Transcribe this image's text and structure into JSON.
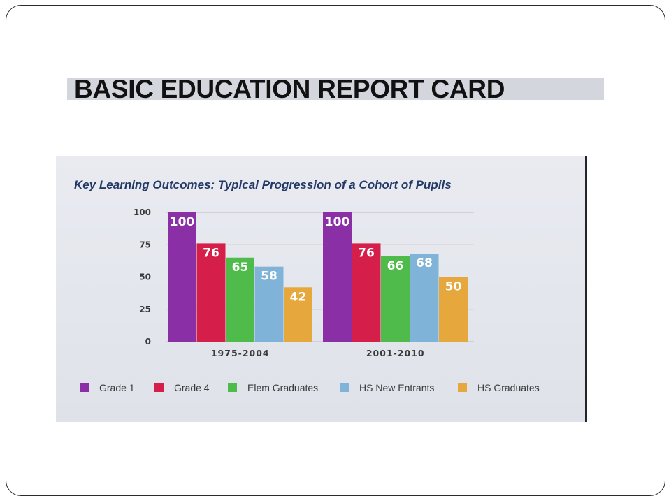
{
  "slide": {
    "title": "BASIC EDUCATION REPORT CARD"
  },
  "chart_data": {
    "type": "bar",
    "title": "Key Learning Outcomes: Typical Progression of a Cohort of Pupils",
    "categories": [
      "1975-2004",
      "2001-2010"
    ],
    "series": [
      {
        "name": "Grade 1",
        "values": [
          100,
          100
        ],
        "color": "#8a2fa6"
      },
      {
        "name": "Grade 4",
        "values": [
          76,
          76
        ],
        "color": "#d51f4a"
      },
      {
        "name": "Elem Graduates",
        "values": [
          65,
          66
        ],
        "color": "#4fbb4a"
      },
      {
        "name": "HS New Entrants",
        "values": [
          58,
          68
        ],
        "color": "#7fb3d8"
      },
      {
        "name": "HS Graduates",
        "values": [
          42,
          50
        ],
        "color": "#e6a83c"
      }
    ],
    "yticks": [
      0,
      25,
      50,
      75,
      100
    ],
    "ylim": [
      0,
      100
    ],
    "grid": true,
    "legend": "bottom"
  }
}
